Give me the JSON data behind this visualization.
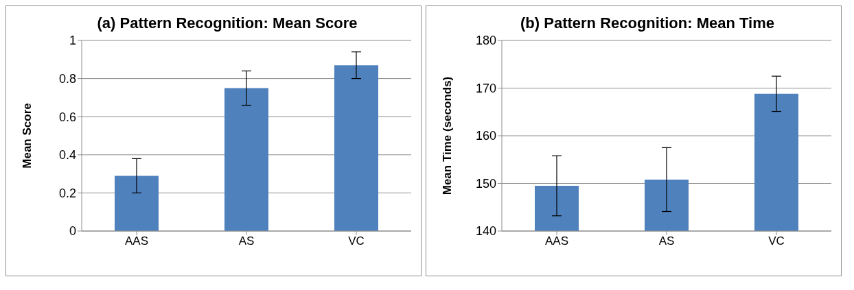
{
  "chart_data": [
    {
      "type": "bar",
      "title": "(a) Pattern Recognition: Mean Score",
      "ylabel": "Mean Score",
      "categories": [
        "AAS",
        "AS",
        "VC"
      ],
      "values": [
        0.29,
        0.75,
        0.87
      ],
      "errors": [
        0.09,
        0.09,
        0.07
      ],
      "color": "#4f81bd",
      "ylim": [
        0,
        1
      ],
      "yticks": [
        0,
        0.2,
        0.4,
        0.6,
        0.8,
        1
      ],
      "grid": "y",
      "legend": false
    },
    {
      "type": "bar",
      "title": "(b) Pattern Recognition: Mean Time",
      "ylabel": "Mean Time (seconds)",
      "categories": [
        "AAS",
        "AS",
        "VC"
      ],
      "values": [
        149.5,
        150.8,
        168.8
      ],
      "errors": [
        6.3,
        6.7,
        3.7
      ],
      "color": "#4f81bd",
      "ylim": [
        140,
        180
      ],
      "yticks": [
        140,
        150,
        160,
        170,
        180
      ],
      "grid": "y",
      "legend": false
    }
  ]
}
